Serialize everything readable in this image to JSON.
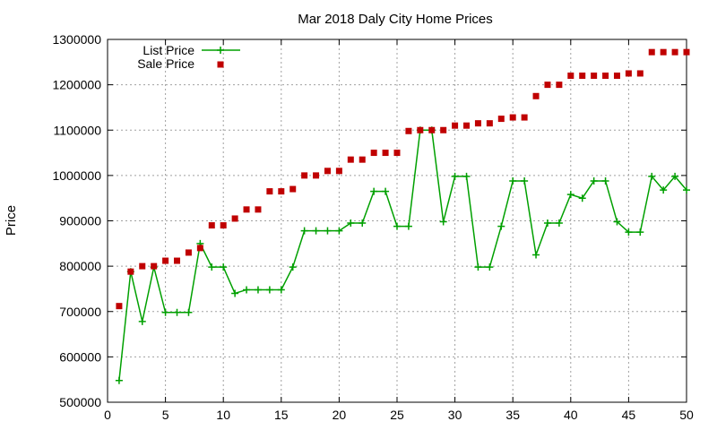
{
  "chart_data": {
    "type": "line",
    "title": "Mar 2018 Daly City Home Prices",
    "xlabel": "",
    "ylabel": "Price",
    "xlim": [
      0,
      50
    ],
    "ylim": [
      500000,
      1300000
    ],
    "xticks": [
      0,
      5,
      10,
      15,
      20,
      25,
      30,
      35,
      40,
      45,
      50
    ],
    "yticks": [
      500000,
      600000,
      700000,
      800000,
      900000,
      1000000,
      1100000,
      1200000,
      1300000
    ],
    "grid": true,
    "legend_position": "top-left",
    "x": [
      1,
      2,
      3,
      4,
      5,
      6,
      7,
      8,
      9,
      10,
      11,
      12,
      13,
      14,
      15,
      16,
      17,
      18,
      19,
      20,
      21,
      22,
      23,
      24,
      25,
      26,
      27,
      28,
      29,
      30,
      31,
      32,
      33,
      34,
      35,
      36,
      37,
      38,
      39,
      40,
      41,
      42,
      43,
      44,
      45,
      46,
      47,
      48,
      49,
      50
    ],
    "series": [
      {
        "name": "List Price",
        "style": "linespoints",
        "marker": "plus",
        "color": "#00a000",
        "values": [
          548000,
          788000,
          678000,
          798000,
          698000,
          698000,
          698000,
          850000,
          798000,
          798000,
          740000,
          748000,
          748000,
          748000,
          748000,
          798000,
          878000,
          878000,
          878000,
          878000,
          895000,
          895000,
          965000,
          965000,
          888000,
          888000,
          1100000,
          1100000,
          898000,
          998000,
          998000,
          798000,
          798000,
          888000,
          988000,
          988000,
          825000,
          895000,
          895000,
          958000,
          950000,
          988000,
          988000,
          898000,
          875000,
          875000,
          998000,
          968000,
          998000,
          968000
        ]
      },
      {
        "name": "Sale Price",
        "style": "points",
        "marker": "square",
        "color": "#c00000",
        "values": [
          712000,
          788000,
          800000,
          800000,
          812000,
          812000,
          830000,
          840000,
          890000,
          890000,
          905000,
          925000,
          925000,
          965000,
          965000,
          970000,
          1000000,
          1000000,
          1010000,
          1010000,
          1035000,
          1035000,
          1050000,
          1050000,
          1050000,
          1098000,
          1100000,
          1100000,
          1100000,
          1110000,
          1110000,
          1115000,
          1115000,
          1125000,
          1128000,
          1128000,
          1175000,
          1200000,
          1200000,
          1220000,
          1220000,
          1220000,
          1220000,
          1220000,
          1225000,
          1225000,
          1272000,
          1272000,
          1272000,
          1272000
        ]
      }
    ]
  }
}
